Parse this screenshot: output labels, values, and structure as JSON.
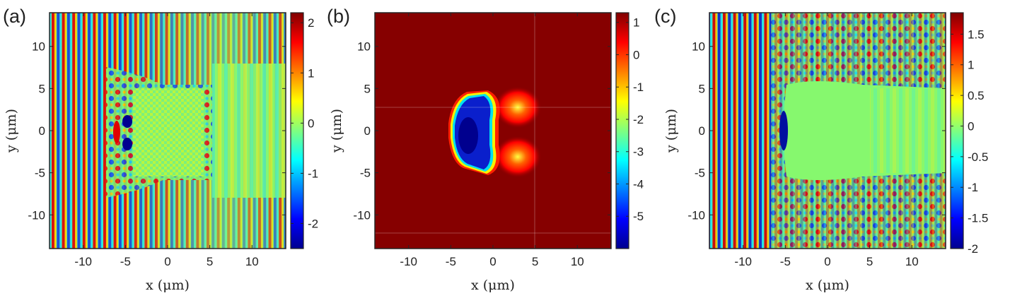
{
  "figure": {
    "panels": [
      {
        "label": "(a)"
      },
      {
        "label": "(b)"
      },
      {
        "label": "(c)"
      }
    ]
  },
  "chart_data": [
    {
      "panel": "(a)",
      "type": "heatmap",
      "title": "",
      "xlabel": "x (μm)",
      "ylabel": "y (μm)",
      "xlim": [
        -14,
        14
      ],
      "ylim": [
        -14,
        14
      ],
      "xticks": [
        -10,
        -5,
        0,
        5,
        10
      ],
      "yticks": [
        10,
        5,
        0,
        -5,
        -10
      ],
      "grid": false,
      "colormap": "jet",
      "colorbar": {
        "min": -2.5,
        "max": 2.2,
        "ticks": [
          2,
          1,
          0,
          -1,
          -2
        ]
      }
    },
    {
      "panel": "(b)",
      "type": "heatmap",
      "title": "",
      "xlabel": "x (μm)",
      "ylabel": "y (μm)",
      "xlim": [
        -14,
        14
      ],
      "ylim": [
        -14,
        14
      ],
      "xticks": [
        -10,
        -5,
        0,
        5,
        10
      ],
      "yticks": [
        10,
        5,
        0,
        -5,
        -10
      ],
      "grid": true,
      "colormap": "jet",
      "colorbar": {
        "min": -6,
        "max": 1.3,
        "ticks": [
          1,
          0,
          -1,
          -2,
          -3,
          -4,
          -5
        ]
      }
    },
    {
      "panel": "(c)",
      "type": "heatmap",
      "title": "",
      "xlabel": "x (μm)",
      "ylabel": "y (μm)",
      "xlim": [
        -14,
        14
      ],
      "ylim": [
        -14,
        14
      ],
      "xticks": [
        -10,
        -5,
        0,
        5,
        10
      ],
      "yticks": [
        10,
        5,
        0,
        -5,
        -10
      ],
      "grid": false,
      "colormap": "jet",
      "colorbar": {
        "min": -2,
        "max": 1.85,
        "ticks": [
          1.5,
          1,
          0.5,
          0,
          -0.5,
          -1,
          -1.5,
          -2
        ]
      }
    }
  ]
}
